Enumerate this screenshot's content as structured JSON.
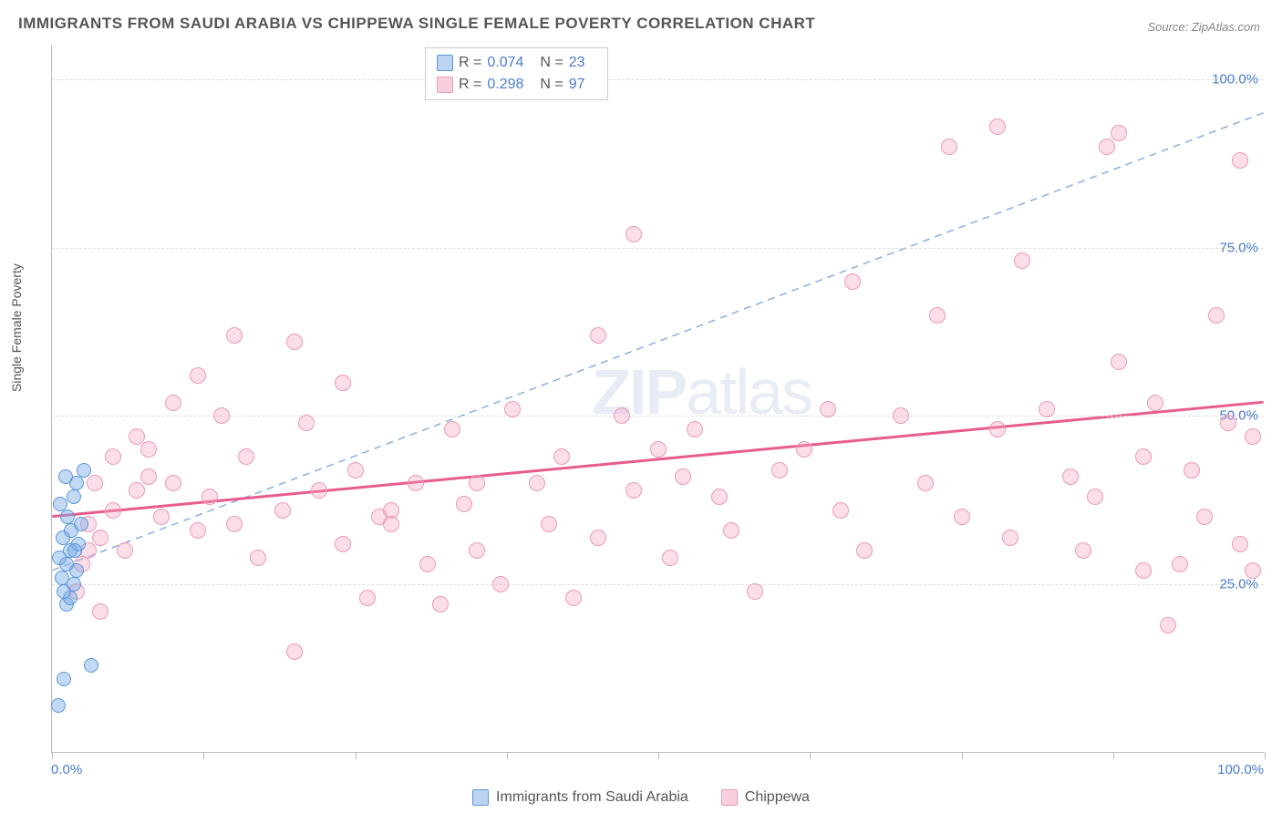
{
  "title": "IMMIGRANTS FROM SAUDI ARABIA VS CHIPPEWA SINGLE FEMALE POVERTY CORRELATION CHART",
  "source": "Source: ZipAtlas.com",
  "ylabel": "Single Female Poverty",
  "watermark_a": "ZIP",
  "watermark_b": "atlas",
  "chart": {
    "type": "scatter",
    "xlim": [
      0,
      100
    ],
    "ylim": [
      0,
      105
    ],
    "background_color": "#ffffff",
    "grid_color": "#dddddd",
    "axis_color": "#bbbbbb",
    "tick_label_color": "#4a7bd0",
    "yticks": [
      25,
      50,
      75,
      100
    ],
    "ytick_labels": [
      "25.0%",
      "50.0%",
      "75.0%",
      "100.0%"
    ],
    "xtick_marks": [
      0,
      12.5,
      25,
      37.5,
      50,
      62.5,
      75,
      87.5,
      100
    ],
    "xlabel_min": "0.0%",
    "xlabel_max": "100.0%",
    "marker_radius_a": 8,
    "marker_radius_b": 9,
    "marker_opacity": 0.4
  },
  "series_a": {
    "name": "Immigrants from Saudi Arabia",
    "color_fill": "#78aae6",
    "color_stroke": "#5a95da",
    "r_label": "R =",
    "r_value": "0.074",
    "n_label": "N =",
    "n_value": "23",
    "trend": {
      "x1": 0,
      "y1": 27,
      "x2": 100,
      "y2": 95,
      "style": "dashed",
      "width": 1.5,
      "color": "#8ab0e0"
    },
    "points": [
      [
        0.5,
        7
      ],
      [
        1.0,
        11
      ],
      [
        1.2,
        22
      ],
      [
        1.5,
        23
      ],
      [
        1.0,
        24
      ],
      [
        1.8,
        25
      ],
      [
        0.8,
        26
      ],
      [
        2.0,
        27
      ],
      [
        1.2,
        28
      ],
      [
        0.6,
        29
      ],
      [
        1.5,
        30
      ],
      [
        2.2,
        31
      ],
      [
        0.9,
        32
      ],
      [
        1.6,
        33
      ],
      [
        2.4,
        34
      ],
      [
        1.3,
        35
      ],
      [
        0.7,
        37
      ],
      [
        1.8,
        38
      ],
      [
        2.0,
        40
      ],
      [
        1.1,
        41
      ],
      [
        2.6,
        42
      ],
      [
        1.9,
        30
      ],
      [
        3.2,
        13
      ]
    ]
  },
  "series_b": {
    "name": "Chippewa",
    "color_fill": "#f4a0be",
    "color_stroke": "#ec9ab8",
    "r_label": "R =",
    "r_value": "0.298",
    "n_label": "N =",
    "n_value": "97",
    "trend": {
      "x1": 0,
      "y1": 35,
      "x2": 100,
      "y2": 52,
      "style": "solid",
      "width": 3,
      "color": "#e85b8d"
    },
    "points": [
      [
        2,
        24
      ],
      [
        2.5,
        28
      ],
      [
        3,
        30
      ],
      [
        3,
        34
      ],
      [
        3.5,
        40
      ],
      [
        4,
        21
      ],
      [
        4,
        32
      ],
      [
        5,
        36
      ],
      [
        5,
        44
      ],
      [
        6,
        30
      ],
      [
        7,
        39
      ],
      [
        7,
        47
      ],
      [
        8,
        41
      ],
      [
        8,
        45
      ],
      [
        9,
        35
      ],
      [
        10,
        40
      ],
      [
        10,
        52
      ],
      [
        12,
        33
      ],
      [
        12,
        56
      ],
      [
        13,
        38
      ],
      [
        14,
        50
      ],
      [
        15,
        62
      ],
      [
        15,
        34
      ],
      [
        16,
        44
      ],
      [
        17,
        29
      ],
      [
        19,
        36
      ],
      [
        20,
        61
      ],
      [
        20,
        15
      ],
      [
        21,
        49
      ],
      [
        22,
        39
      ],
      [
        24,
        55
      ],
      [
        24,
        31
      ],
      [
        25,
        42
      ],
      [
        26,
        23
      ],
      [
        27,
        35
      ],
      [
        28,
        34
      ],
      [
        28,
        36
      ],
      [
        30,
        40
      ],
      [
        31,
        28
      ],
      [
        32,
        22
      ],
      [
        33,
        48
      ],
      [
        34,
        37
      ],
      [
        35,
        40
      ],
      [
        35,
        30
      ],
      [
        37,
        25
      ],
      [
        38,
        51
      ],
      [
        40,
        40
      ],
      [
        41,
        34
      ],
      [
        42,
        44
      ],
      [
        43,
        23
      ],
      [
        45,
        62
      ],
      [
        45,
        32
      ],
      [
        47,
        50
      ],
      [
        48,
        77
      ],
      [
        48,
        39
      ],
      [
        50,
        45
      ],
      [
        51,
        29
      ],
      [
        52,
        41
      ],
      [
        53,
        48
      ],
      [
        55,
        38
      ],
      [
        56,
        33
      ],
      [
        58,
        24
      ],
      [
        60,
        42
      ],
      [
        62,
        45
      ],
      [
        64,
        51
      ],
      [
        65,
        36
      ],
      [
        66,
        70
      ],
      [
        67,
        30
      ],
      [
        70,
        50
      ],
      [
        72,
        40
      ],
      [
        73,
        65
      ],
      [
        74,
        90
      ],
      [
        75,
        35
      ],
      [
        78,
        93
      ],
      [
        78,
        48
      ],
      [
        79,
        32
      ],
      [
        80,
        73
      ],
      [
        82,
        51
      ],
      [
        84,
        41
      ],
      [
        85,
        30
      ],
      [
        87,
        90
      ],
      [
        88,
        92
      ],
      [
        88,
        58
      ],
      [
        90,
        27
      ],
      [
        90,
        44
      ],
      [
        92,
        19
      ],
      [
        93,
        28
      ],
      [
        94,
        42
      ],
      [
        96,
        65
      ],
      [
        97,
        49
      ],
      [
        98,
        88
      ],
      [
        98,
        31
      ],
      [
        99,
        27
      ],
      [
        99,
        47
      ],
      [
        95,
        35
      ],
      [
        91,
        52
      ],
      [
        86,
        38
      ]
    ]
  },
  "legend_bottom": {
    "item_a": "Immigrants from Saudi Arabia",
    "item_b": "Chippewa"
  }
}
